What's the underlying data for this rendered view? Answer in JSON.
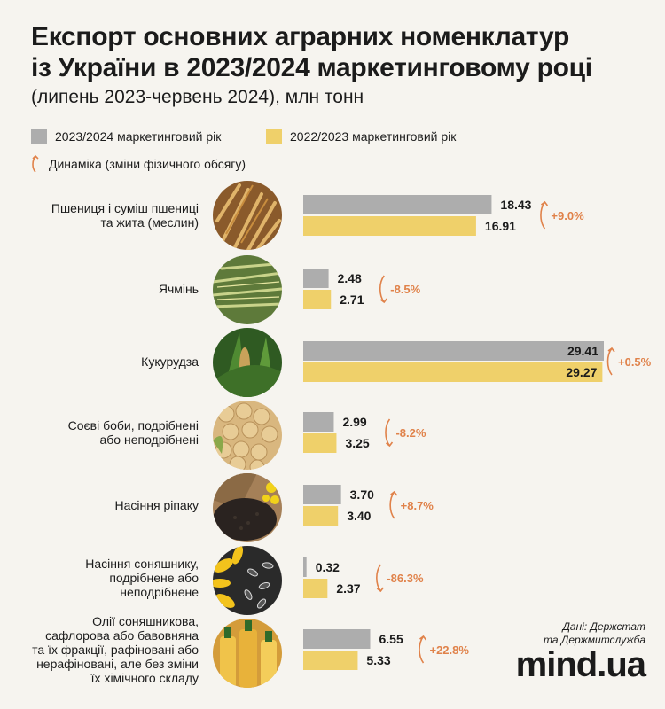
{
  "title_line1": "Експорт основних аграрних номенклатур",
  "title_line2": "із України в 2023/2024 маркетинговому році",
  "subtitle": "(липень 2023-червень 2024), млн тонн",
  "legend": {
    "series_current": "2023/2024 маркетинговий рік",
    "series_prev": "2022/2023 маркетинговий рік",
    "dynamics": "Динаміка (зміни фізичного обсягу)"
  },
  "colors": {
    "current": "#adadad",
    "prev": "#efd06a",
    "dynamics": "#e0824a",
    "background": "#f6f4ef"
  },
  "chart_data": {
    "type": "bar",
    "orientation": "horizontal",
    "unit": "млн тонн",
    "categories": [
      "Пшениця і суміш пшениці та жита (меслин)",
      "Ячмінь",
      "Кукурудза",
      "Соєві боби, подрібнені або неподрібнені",
      "Насіння ріпаку",
      "Насіння соняшнику, подрібнене або неподрібнене",
      "Олії соняшникова, сафлорова або бавовняна та їх фракції, рафіновані або нерафіновані, але без зміни їх хімічного складу"
    ],
    "category_lines": [
      [
        "Пшениця і суміш пшениці",
        "та жита (меслин)"
      ],
      [
        "Ячмінь"
      ],
      [
        "Кукурудза"
      ],
      [
        "Соєві боби, подрібнені",
        "або неподрібнені"
      ],
      [
        "Насіння ріпаку"
      ],
      [
        "Насіння соняшнику,",
        "подрібнене або",
        "неподрібнене"
      ],
      [
        "Олії соняшникова,",
        "сафлорова або бавовняна",
        "та їх фракції, рафіновані або",
        "нерафіновані, але без зміни",
        "їх хімічного складу"
      ]
    ],
    "series": [
      {
        "name": "2023/2024 маркетинговий рік",
        "values": [
          18.43,
          2.48,
          29.41,
          2.99,
          3.7,
          0.32,
          6.55
        ],
        "labels": [
          "18.43",
          "2.48",
          "29.41",
          "2.99",
          "3.70",
          "0.32",
          "6.55"
        ]
      },
      {
        "name": "2022/2023 маркетинговий рік",
        "values": [
          16.91,
          2.71,
          29.27,
          3.25,
          3.4,
          2.37,
          5.33
        ],
        "labels": [
          "16.91",
          "2.71",
          "29.27",
          "3.25",
          "3.40",
          "2.37",
          "5.33"
        ]
      }
    ],
    "dynamics": [
      "+9.0%",
      "-8.5%",
      "+0.5%",
      "-8.2%",
      "+8.7%",
      "-86.3%",
      "+22.8%"
    ],
    "xlim": [
      0,
      29.41
    ]
  },
  "photos": [
    "wheat-photo",
    "barley-photo",
    "corn-photo",
    "soybean-photo",
    "rapeseed-photo",
    "sunflower-seed-photo",
    "oil-photo"
  ],
  "source": [
    "Дані: Держстат",
    "та Держмитслужба"
  ],
  "logo": "mind.ua"
}
